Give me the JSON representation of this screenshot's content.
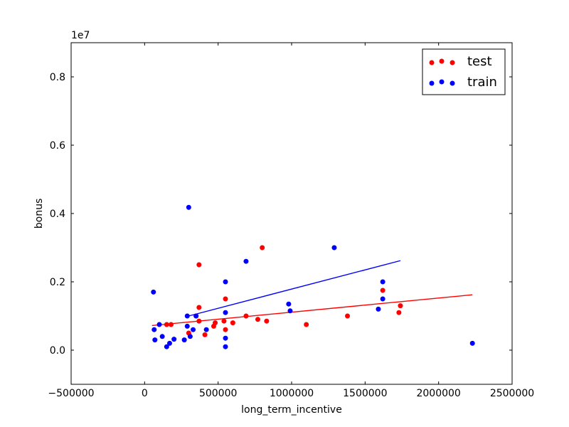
{
  "chart_data": {
    "type": "scatter",
    "xlabel": "long_term_incentive",
    "ylabel": "bonus",
    "y_offset_label": "1e7",
    "xlim": [
      -500000,
      2500000
    ],
    "ylim": [
      -1000000,
      9000000
    ],
    "x_ticks": [
      -500000,
      0,
      500000,
      1000000,
      1500000,
      2000000,
      2500000
    ],
    "x_tick_labels": [
      "−500000",
      "0",
      "500000",
      "1000000",
      "1500000",
      "2000000",
      "2500000"
    ],
    "y_ticks": [
      0,
      2000000,
      4000000,
      6000000,
      8000000
    ],
    "y_tick_labels": [
      "0.0",
      "0.2",
      "0.4",
      "0.6",
      "0.8"
    ],
    "grid": false,
    "legend_placement": "top-right",
    "series": [
      {
        "name": "test",
        "color": "#ff0000",
        "points": [
          [
            150000,
            750000
          ],
          [
            180000,
            750000
          ],
          [
            300000,
            500000
          ],
          [
            350000,
            1000000
          ],
          [
            370000,
            1250000
          ],
          [
            370000,
            2500000
          ],
          [
            370000,
            850000
          ],
          [
            410000,
            450000
          ],
          [
            470000,
            700000
          ],
          [
            480000,
            800000
          ],
          [
            540000,
            850000
          ],
          [
            550000,
            1500000
          ],
          [
            550000,
            600000
          ],
          [
            600000,
            800000
          ],
          [
            690000,
            1000000
          ],
          [
            770000,
            900000
          ],
          [
            800000,
            3000000
          ],
          [
            830000,
            850000
          ],
          [
            1100000,
            750000
          ],
          [
            1380000,
            1000000
          ],
          [
            1620000,
            1750000
          ],
          [
            1730000,
            1100000
          ],
          [
            1740000,
            1300000
          ]
        ],
        "fit": [
          [
            50000,
            720000
          ],
          [
            2230000,
            1620000
          ]
        ]
      },
      {
        "name": "train",
        "color": "#0000ff",
        "points": [
          [
            60000,
            1700000
          ],
          [
            65000,
            600000
          ],
          [
            70000,
            300000
          ],
          [
            100000,
            750000
          ],
          [
            120000,
            400000
          ],
          [
            150000,
            100000
          ],
          [
            170000,
            200000
          ],
          [
            200000,
            320000
          ],
          [
            270000,
            300000
          ],
          [
            290000,
            1000000
          ],
          [
            290000,
            700000
          ],
          [
            300000,
            4180000
          ],
          [
            310000,
            400000
          ],
          [
            330000,
            600000
          ],
          [
            350000,
            1000000
          ],
          [
            420000,
            600000
          ],
          [
            550000,
            2000000
          ],
          [
            550000,
            1100000
          ],
          [
            550000,
            350000
          ],
          [
            550000,
            100000
          ],
          [
            690000,
            2600000
          ],
          [
            980000,
            1350000
          ],
          [
            990000,
            1150000
          ],
          [
            1290000,
            3000000
          ],
          [
            1590000,
            1200000
          ],
          [
            1620000,
            2000000
          ],
          [
            1620000,
            1500000
          ],
          [
            2230000,
            200000
          ]
        ],
        "fit": [
          [
            300000,
            1000000
          ],
          [
            1740000,
            2620000
          ]
        ]
      }
    ]
  }
}
